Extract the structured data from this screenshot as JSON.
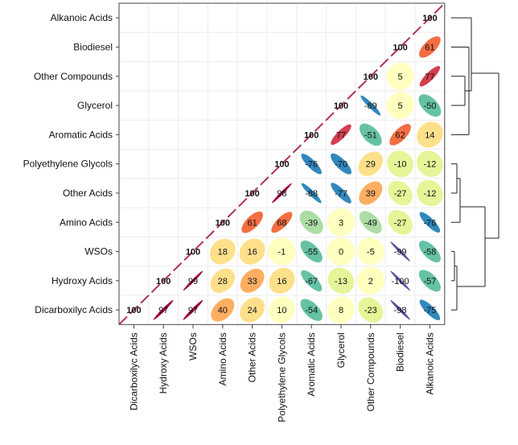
{
  "chart_data": {
    "type": "heatmap",
    "title": "",
    "rows": [
      "Alkanoic Acids",
      "Biodiesel",
      "Other Compounds",
      "Glycerol",
      "Aromatic Acids",
      "Polyethylene Glycols",
      "Other Acids",
      "Amino Acids",
      "WSOs",
      "Hydroxy Acids",
      "Dicarboxilyc Acids"
    ],
    "columns": [
      "Dicarboxilyc Acids",
      "Hydroxy Acids",
      "WSOs",
      "Amino Acids",
      "Other Acids",
      "Polyethylene Glycols",
      "Aromatic Acids",
      "Glycerol",
      "Other Compounds",
      "Biodiesel",
      "Alkanoic Acids"
    ],
    "values": [
      [
        null,
        null,
        null,
        null,
        null,
        null,
        null,
        null,
        null,
        null,
        100
      ],
      [
        null,
        null,
        null,
        null,
        null,
        null,
        null,
        null,
        null,
        100,
        61
      ],
      [
        null,
        null,
        null,
        null,
        null,
        null,
        null,
        null,
        100,
        5,
        77
      ],
      [
        null,
        null,
        null,
        null,
        null,
        null,
        null,
        100,
        -89,
        5,
        -50
      ],
      [
        null,
        null,
        null,
        null,
        null,
        null,
        100,
        77,
        -51,
        62,
        14
      ],
      [
        null,
        null,
        null,
        null,
        null,
        100,
        -76,
        -70,
        29,
        -10,
        -12
      ],
      [
        null,
        null,
        null,
        null,
        100,
        98,
        -88,
        -77,
        39,
        -27,
        -12
      ],
      [
        null,
        null,
        null,
        100,
        61,
        68,
        -39,
        3,
        -49,
        -27,
        -76
      ],
      [
        null,
        null,
        100,
        18,
        16,
        -1,
        -55,
        0,
        -5,
        -99,
        -58
      ],
      [
        null,
        100,
        99,
        28,
        33,
        16,
        -67,
        -13,
        2,
        -100,
        -57
      ],
      [
        100,
        97,
        97,
        40,
        24,
        10,
        -54,
        8,
        -23,
        -98,
        -75
      ]
    ],
    "diagonal_style": "dashed-line",
    "dendrogram": "right",
    "colors": {
      "scale": [
        "#9e0142",
        "#d53e4f",
        "#f46d43",
        "#fdae61",
        "#fee08b",
        "#ffffbf",
        "#e6f598",
        "#abdda4",
        "#66c2a5",
        "#3288bd",
        "#5e4fa2"
      ],
      "diagonal": "#b03060",
      "border": "#444444"
    }
  }
}
